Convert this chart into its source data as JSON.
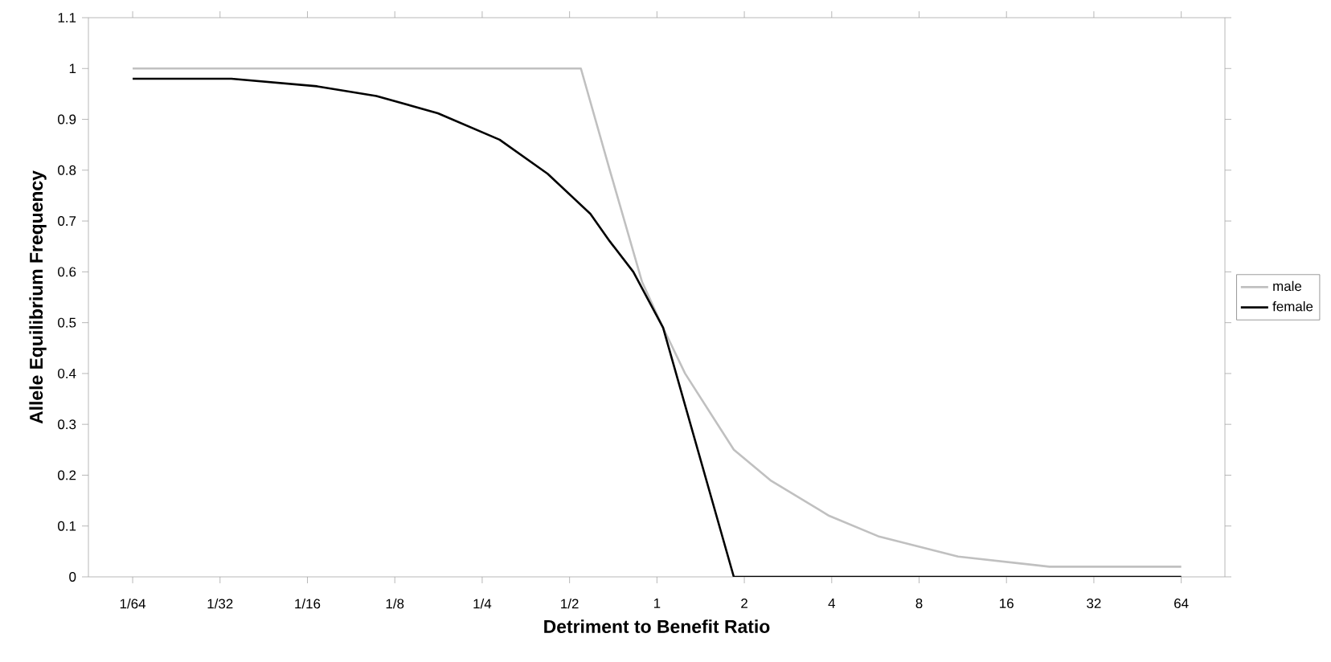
{
  "chart_data": {
    "type": "line",
    "xlabel": "Detriment to Benefit Ratio",
    "ylabel": "Allele Equilibrium Frequency",
    "log": "x",
    "xlim": [
      0.011,
      90.5
    ],
    "ylim": [
      0,
      1.1
    ],
    "xticks": [
      {
        "value": 0.015625,
        "label": "1/64"
      },
      {
        "value": 0.03125,
        "label": "1/32"
      },
      {
        "value": 0.0625,
        "label": "1/16"
      },
      {
        "value": 0.125,
        "label": "1/8"
      },
      {
        "value": 0.25,
        "label": "1/4"
      },
      {
        "value": 0.5,
        "label": "1/2"
      },
      1,
      2,
      4,
      8,
      16,
      32,
      64
    ],
    "yticks": [
      0,
      0.1,
      0.2,
      0.3,
      0.4,
      0.5,
      0.6,
      0.7,
      0.8,
      0.9,
      1,
      1.1
    ],
    "grid": false,
    "legend": "right",
    "line_style": "solid",
    "marker": "none",
    "series": [
      {
        "name": "male",
        "color": "#c0c0c0",
        "x": [
          0.015625,
          0.547,
          0.688,
          0.889,
          1.05,
          1.25,
          1.84,
          2.46,
          3.92,
          5.78,
          10.9,
          22.5,
          64
        ],
        "values": [
          1,
          1,
          0.8,
          0.58,
          0.49,
          0.4,
          0.25,
          0.19,
          0.12,
          0.08,
          0.04,
          0.02,
          0.02
        ]
      },
      {
        "name": "female",
        "color": "#000000",
        "x": [
          0.015625,
          0.0342,
          0.0675,
          0.108,
          0.176,
          0.287,
          0.42,
          0.59,
          0.688,
          0.829,
          1.05,
          1.84,
          64
        ],
        "values": [
          0.98,
          0.98,
          0.965,
          0.946,
          0.912,
          0.86,
          0.793,
          0.714,
          0.66,
          0.6,
          0.49,
          0,
          0
        ]
      }
    ]
  }
}
